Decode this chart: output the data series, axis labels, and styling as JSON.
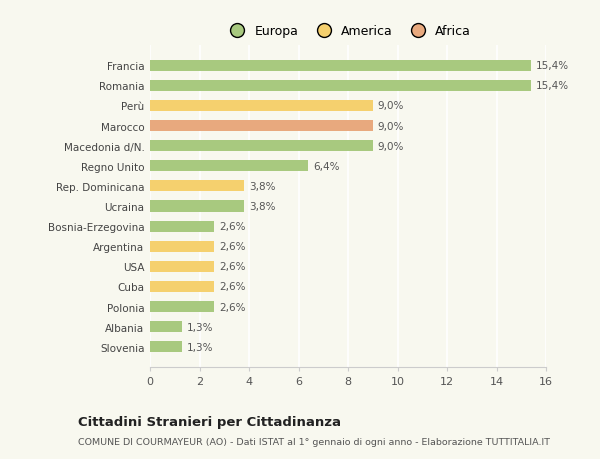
{
  "categories": [
    "Francia",
    "Romania",
    "Perù",
    "Marocco",
    "Macedonia d/N.",
    "Regno Unito",
    "Rep. Dominicana",
    "Ucraina",
    "Bosnia-Erzegovina",
    "Argentina",
    "USA",
    "Cuba",
    "Polonia",
    "Albania",
    "Slovenia"
  ],
  "values": [
    15.4,
    15.4,
    9.0,
    9.0,
    9.0,
    6.4,
    3.8,
    3.8,
    2.6,
    2.6,
    2.6,
    2.6,
    2.6,
    1.3,
    1.3
  ],
  "continents": [
    "Europa",
    "Europa",
    "America",
    "Africa",
    "Europa",
    "Europa",
    "America",
    "Europa",
    "Europa",
    "America",
    "America",
    "America",
    "Europa",
    "Europa",
    "Europa"
  ],
  "labels": [
    "15,4%",
    "15,4%",
    "9,0%",
    "9,0%",
    "9,0%",
    "6,4%",
    "3,8%",
    "3,8%",
    "2,6%",
    "2,6%",
    "2,6%",
    "2,6%",
    "2,6%",
    "1,3%",
    "1,3%"
  ],
  "color_europa": "#a8c97f",
  "color_america": "#f5d06e",
  "color_africa": "#e8a97e",
  "background_color": "#f8f8ef",
  "title": "Cittadini Stranieri per Cittadinanza",
  "subtitle": "COMUNE DI COURMAYEUR (AO) - Dati ISTAT al 1° gennaio di ogni anno - Elaborazione TUTTITALIA.IT",
  "xlim": [
    0,
    16
  ],
  "xticks": [
    0,
    2,
    4,
    6,
    8,
    10,
    12,
    14,
    16
  ]
}
